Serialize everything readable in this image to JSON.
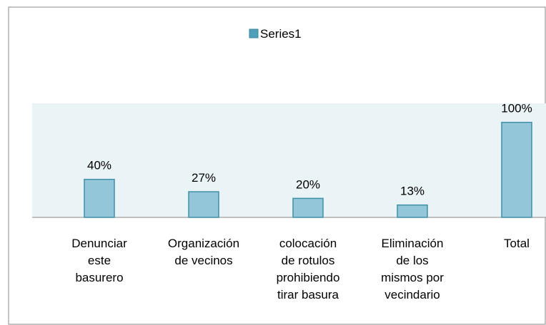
{
  "chart_data": {
    "type": "bar",
    "categories": [
      [
        "Denunciar",
        "este",
        "basurero"
      ],
      [
        "Organización",
        "de vecinos"
      ],
      [
        "colocación",
        "de rotulos",
        "prohibiendo",
        "tirar basura"
      ],
      [
        "Eliminación",
        "de los",
        "mismos por",
        "vecindario"
      ],
      [
        "Total"
      ]
    ],
    "series": [
      {
        "name": "Series1",
        "color": "#93c6d8",
        "values": [
          40,
          27,
          20,
          13,
          100
        ],
        "value_labels": [
          "40%",
          "27%",
          "20%",
          "13%",
          "100%"
        ]
      }
    ],
    "ylim": [
      0,
      120
    ],
    "legend": "top"
  }
}
